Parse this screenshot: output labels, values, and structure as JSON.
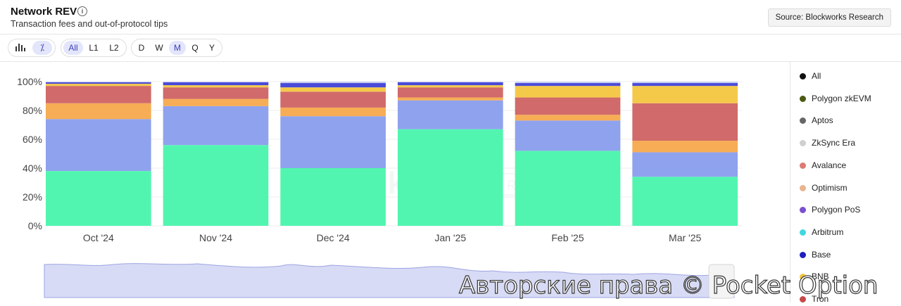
{
  "header": {
    "title": "Network REV",
    "subtitle": "Transaction fees and out-of-protocol tips",
    "source_label": "Source: Blockworks Research"
  },
  "controls": {
    "scope_tabs": [
      {
        "label": "All",
        "active": true
      },
      {
        "label": "L1",
        "active": false
      },
      {
        "label": "L2",
        "active": false
      }
    ],
    "period_tabs": [
      {
        "label": "D",
        "active": false
      },
      {
        "label": "W",
        "active": false
      },
      {
        "label": "M",
        "active": true
      },
      {
        "label": "Q",
        "active": false
      },
      {
        "label": "Y",
        "active": false
      }
    ],
    "chart_type_icons": [
      "bar-chart-icon",
      "percent-icon"
    ]
  },
  "legend": [
    {
      "label": "All",
      "color": "#111111"
    },
    {
      "label": "Polygon zkEVM",
      "color": "#4a5a12"
    },
    {
      "label": "Aptos",
      "color": "#666666"
    },
    {
      "label": "ZkSync Era",
      "color": "#cfcfcf"
    },
    {
      "label": "Avalance",
      "color": "#dc7b74"
    },
    {
      "label": "Optimism",
      "color": "#e8b48c"
    },
    {
      "label": "Polygon PoS",
      "color": "#7b4fd0"
    },
    {
      "label": "Arbitrum",
      "color": "#3fd8e0"
    },
    {
      "label": "Base",
      "color": "#1d1fbf"
    },
    {
      "label": "BNB",
      "color": "#f3c640"
    },
    {
      "label": "Tron",
      "color": "#c54848"
    }
  ],
  "watermark_text": "Авторские права © Pocket Option",
  "chart_data": {
    "type": "bar",
    "stacked": true,
    "normalized": true,
    "categories": [
      "Oct '24",
      "Nov '24",
      "Dec '24",
      "Jan '25",
      "Feb '25",
      "Mar '25"
    ],
    "ylim": [
      0,
      100
    ],
    "yticks": [
      "0%",
      "20%",
      "40%",
      "60%",
      "80%",
      "100%"
    ],
    "grid": true,
    "series": [
      {
        "color": "#52f5b0",
        "values": [
          38,
          56,
          40,
          67,
          52,
          34
        ]
      },
      {
        "color": "#8fa2ee",
        "values": [
          36,
          27,
          36,
          20,
          21,
          17
        ]
      },
      {
        "color": "#f6ad55",
        "values": [
          11,
          5,
          6,
          2,
          4,
          8
        ]
      },
      {
        "color": "#d16a6a",
        "values": [
          12,
          8,
          11,
          7,
          12,
          26
        ]
      },
      {
        "color": "#f4c94a",
        "values": [
          1.5,
          1.5,
          3,
          1.5,
          8,
          12
        ]
      },
      {
        "color": "#4a4ad8",
        "values": [
          1,
          2,
          3,
          2,
          2,
          2
        ]
      },
      {
        "color": "#c9d0f3",
        "values": [
          0.5,
          0.5,
          1,
          0.5,
          1,
          1
        ]
      }
    ]
  }
}
